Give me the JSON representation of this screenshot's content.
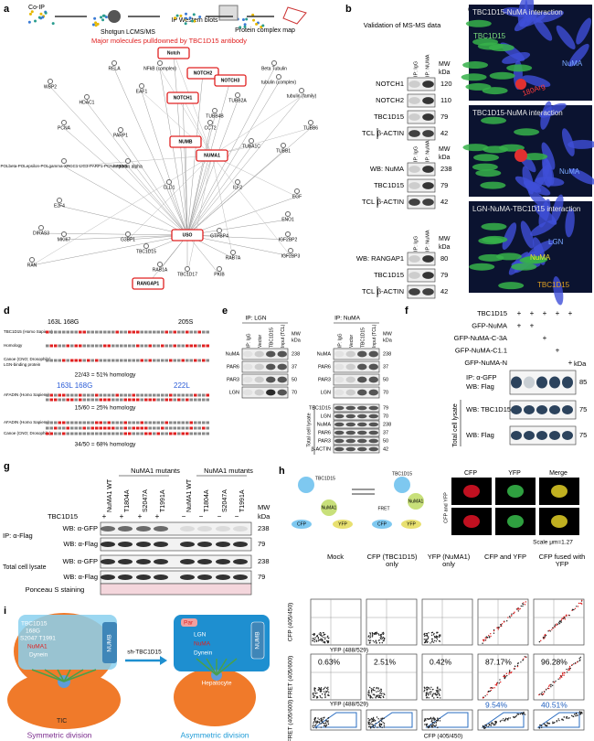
{
  "panel_labels": [
    "a",
    "b",
    "c",
    "d",
    "e",
    "f",
    "g",
    "h",
    "i"
  ],
  "a": {
    "steps": [
      "Co-IP",
      "Shotgun LCMS/MS",
      "IP Western blots",
      "Protein complex map"
    ],
    "subtitle": "Major molecules pulldowned by TBC1D15 antibody",
    "nodes": [
      "Notch",
      "NOTCH2",
      "NOTCH3",
      "NOTCH1",
      "NUMB",
      "NUMA1",
      "USO",
      "RANGAP1",
      "RELA",
      "NFkB (complex)",
      "WBP2",
      "HDAC1",
      "EAF1",
      "PCNA",
      "PARP1",
      "POLbeta-POLepsilon-POLgamma-XRCC1-LIG3-PARP1-PCNA-FEN1",
      "E2F4",
      "DIRAS3",
      "RAN",
      "Beta Tubulin",
      "tubulin (complex)",
      "tubulin (family)",
      "TUBB2A",
      "TUBB4B",
      "TUBB6",
      "TUBB1",
      "CCT2",
      "TUBA1C",
      "CLD1",
      "ILF2",
      "EGF",
      "ENO1",
      "RAB1A",
      "RAB7A",
      "GTPBP4",
      "TBC1D15",
      "TBC1D17",
      "PKIB",
      "IGF2BP2",
      "IGF2BP3",
      "Importin alpha",
      "MKI67",
      "G3BP1"
    ]
  },
  "b": {
    "title": "Validation of MS-MS data",
    "mw": [
      "MW",
      "kDa"
    ],
    "tcl": "TCL",
    "blots": [
      {
        "lanes": [
          "IP: IgG",
          "IP: NUMA"
        ],
        "rows": [
          {
            "label": "NOTCH1",
            "kda": 120
          },
          {
            "label": "NOTCH2",
            "kda": 110
          },
          {
            "label": "TBC1D15",
            "kda": 79
          },
          {
            "label": "β-ACTIN",
            "kda": 42
          }
        ]
      },
      {
        "lanes": [
          "IP: IgG",
          "IP: NuMA"
        ],
        "rows": [
          {
            "label": "WB: NuMA",
            "kda": 238
          },
          {
            "label": "TBC1D15",
            "kda": 79
          },
          {
            "label": "β-ACTIN",
            "kda": 42
          }
        ]
      },
      {
        "lanes": [
          "IP: IgG",
          "IP: NuMA"
        ],
        "rows": [
          {
            "label": "WB: RANGAP1",
            "kda": 80
          },
          {
            "label": "TBC1D15",
            "kda": 79
          },
          {
            "label": "β-ACTIN",
            "kda": 42
          }
        ]
      }
    ]
  },
  "c": {
    "images": [
      {
        "title": "TBC1D15-NuMA interaction",
        "labels": [
          "TBC1D15",
          "NuMA",
          "180Arg"
        ]
      },
      {
        "title": "TBC1D15-NuMA interaction",
        "labels": [
          "NuMA"
        ]
      },
      {
        "title": "LGN-NuMA-TBC1D15 interaction",
        "labels": [
          "LGN",
          "NuMA",
          "TBC1D15"
        ]
      }
    ]
  },
  "d": {
    "sites1": [
      "163L 168G",
      "205S"
    ],
    "rows1": [
      "TBC1D15 (Homo Sapiens)",
      "Homology",
      "Canoe (CNO; Drosophila)",
      "LGN-binding protein"
    ],
    "homology1": "22/43 = 51% homology",
    "sites2": [
      "163L 168G",
      "222L"
    ],
    "rows2": [
      "AFADIN (Homo Sapiens)"
    ],
    "homology2": "15/60 = 25% homology",
    "rows3": [
      "AFADIN (Homo Sapiens)",
      "Canoe (CNO; Drosophila)"
    ],
    "homology3": "34/50 = 68% homology"
  },
  "e": {
    "ip": [
      "IP: LGN",
      "IP: NuMA"
    ],
    "lanes": [
      "IP: IgG",
      "Vector",
      "TBC1D15",
      "Input (TCL)"
    ],
    "mw": [
      "MW",
      "kDa"
    ],
    "rows": [
      {
        "label": "NuMA",
        "kda": 238
      },
      {
        "label": "PAR6",
        "kda": 37
      },
      {
        "label": "PAR3",
        "kda": 50
      },
      {
        "label": "LGN",
        "kda": 70
      }
    ],
    "lysate_label": "Total cell lysate",
    "lysate_rows": [
      {
        "label": "TBC1D15",
        "kda": 79
      },
      {
        "label": "LGN",
        "kda": 70
      },
      {
        "label": "NuMA",
        "kda": 238
      },
      {
        "label": "PAR6",
        "kda": 37
      },
      {
        "label": "PAR3",
        "kda": 50
      },
      {
        "label": "β-ACTIN",
        "kda": 42
      }
    ]
  },
  "f": {
    "rows": [
      {
        "label": "TBC1D15",
        "signs": [
          "+",
          "+",
          "+",
          "+",
          "+"
        ]
      },
      {
        "label": "GFP-NuMA",
        "signs": [
          "+",
          "+",
          null,
          null,
          null
        ]
      },
      {
        "label": "GFP-NuMA-C-3A",
        "signs": [
          null,
          null,
          "+",
          null,
          null
        ]
      },
      {
        "label": "GFP-NuMA-C1.1",
        "signs": [
          null,
          null,
          null,
          "+",
          null
        ]
      },
      {
        "label": "GFP-NuMA-N",
        "signs": [
          null,
          null,
          null,
          null,
          "+"
        ]
      }
    ],
    "kda_label": "kDa",
    "blots": [
      {
        "label": [
          "IP: α-GFP",
          "WB: Flag"
        ],
        "kda": 85
      },
      {
        "label": [
          "WB: TBC1D15"
        ],
        "kda": 75
      },
      {
        "label": [
          "WB: Flag"
        ],
        "kda": 75
      }
    ],
    "lysate_label": "Total cell lysate"
  },
  "g": {
    "group_titles": [
      "NuMA1 mutants",
      "NuMA1 mutants"
    ],
    "columns": [
      "NuMA1 WT",
      "T1804A",
      "S2047A",
      "T1991A",
      "NuMA1 WT",
      "T1804A",
      "S2047A",
      "T1991A"
    ],
    "tbc_label": "TBC1D15",
    "tbc_signs": [
      "+",
      "+",
      "+",
      "+",
      "−",
      "−",
      "−",
      "−"
    ],
    "mw": [
      "MW",
      "kDa"
    ],
    "sections": [
      "IP: α-Flag",
      "Total cell lysate"
    ],
    "rows": [
      {
        "label": "WB: α-GFP",
        "kda": 238
      },
      {
        "label": "WB: α-Flag",
        "kda": 79
      },
      {
        "label": "WB: α-GFP",
        "kda": 238
      },
      {
        "label": "WB: α-Flag",
        "kda": 79
      }
    ],
    "ponceau": "Ponceau S staining"
  },
  "h": {
    "diagram": [
      "TBC1D15",
      "NuMA1",
      "FRET",
      "NuMA1",
      "TBC1D15"
    ],
    "legend": [
      "CFP",
      "YFP",
      "CFP",
      "YFP"
    ],
    "micro_titles": [
      "CFP",
      "YFP",
      "Merge"
    ],
    "micro_row": "CFP and YFP",
    "scale": "Scale μm=1.27",
    "columns": [
      "Mock",
      "CFP (TBC1D15) only",
      "YFP (NuMA1) only",
      "CFP and YFP",
      "CFP fused with YFP"
    ],
    "axes": [
      "CFP (405/450)",
      "YFP (488/529)",
      "FRET (405/600)",
      "YFP (488/529)",
      "FRET (405/600)",
      "CFP (405/450)"
    ],
    "fret_percent": [
      "0.63%",
      "2.51%",
      "0.42%",
      "87.17%",
      "96.28%"
    ],
    "gate_percent": [
      null,
      null,
      null,
      "9.54%",
      "40.51%"
    ]
  },
  "i": {
    "left": [
      "TBC1D15",
      "168G",
      "S2047 T1991",
      "NuMA1",
      "Dynein",
      "NUMB",
      "TIC"
    ],
    "arrow": "sh-TBC1D15",
    "right": [
      "Par",
      "LGN",
      "NuMA",
      "Dynein",
      "NUMB",
      "Hepatocyte"
    ],
    "captions": [
      "Symmetric division",
      "Asymmetric division"
    ]
  }
}
